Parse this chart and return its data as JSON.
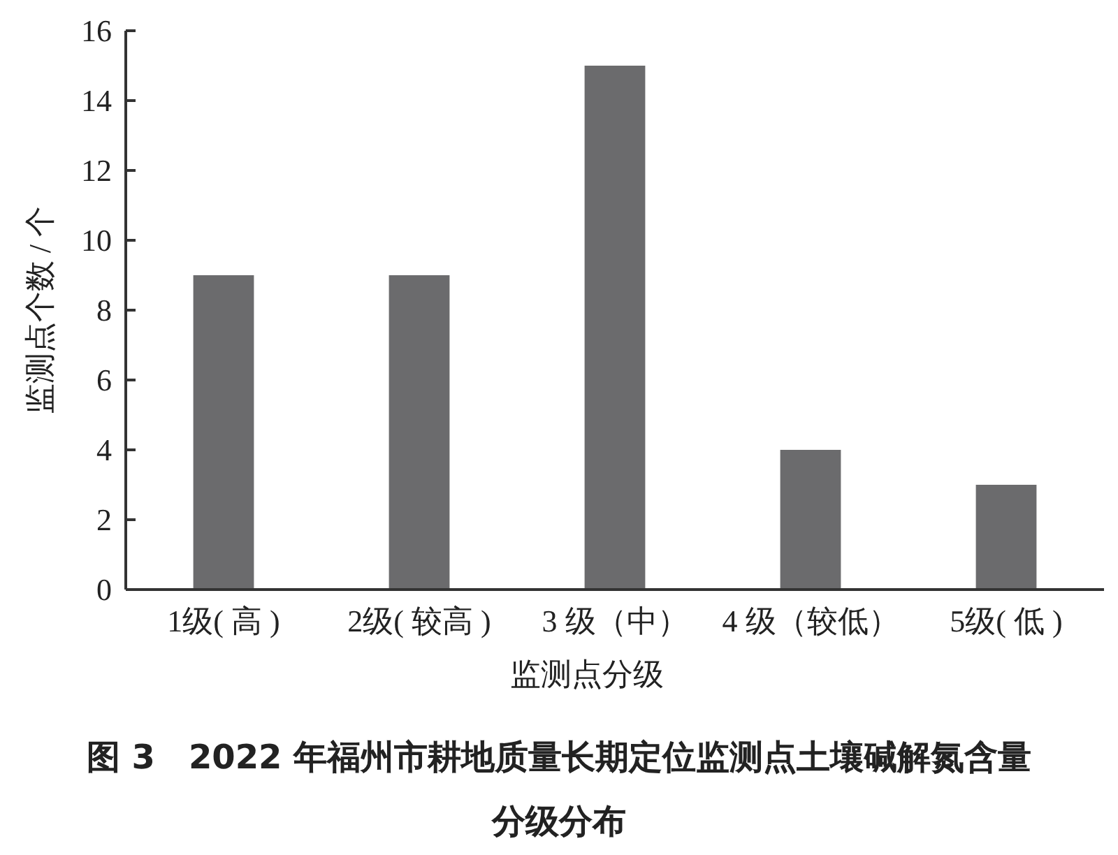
{
  "chart_data": {
    "type": "bar",
    "title": "图 3　2022 年福州市耕地质量长期定位监测点土壤碱解氮含量分级分布",
    "xlabel": "监测点分级",
    "ylabel": "监测点个数 / 个",
    "categories": [
      "1级( 高 )",
      "2级( 较高 )",
      "3 级（中）",
      "4 级（较低）",
      "5级( 低 )"
    ],
    "values": [
      9,
      9,
      15,
      4,
      3
    ],
    "color": "#6b6b6d",
    "ylim": [
      0,
      16
    ],
    "yticks": [
      0,
      2,
      4,
      6,
      8,
      10,
      12,
      14,
      16
    ],
    "grid": false
  }
}
